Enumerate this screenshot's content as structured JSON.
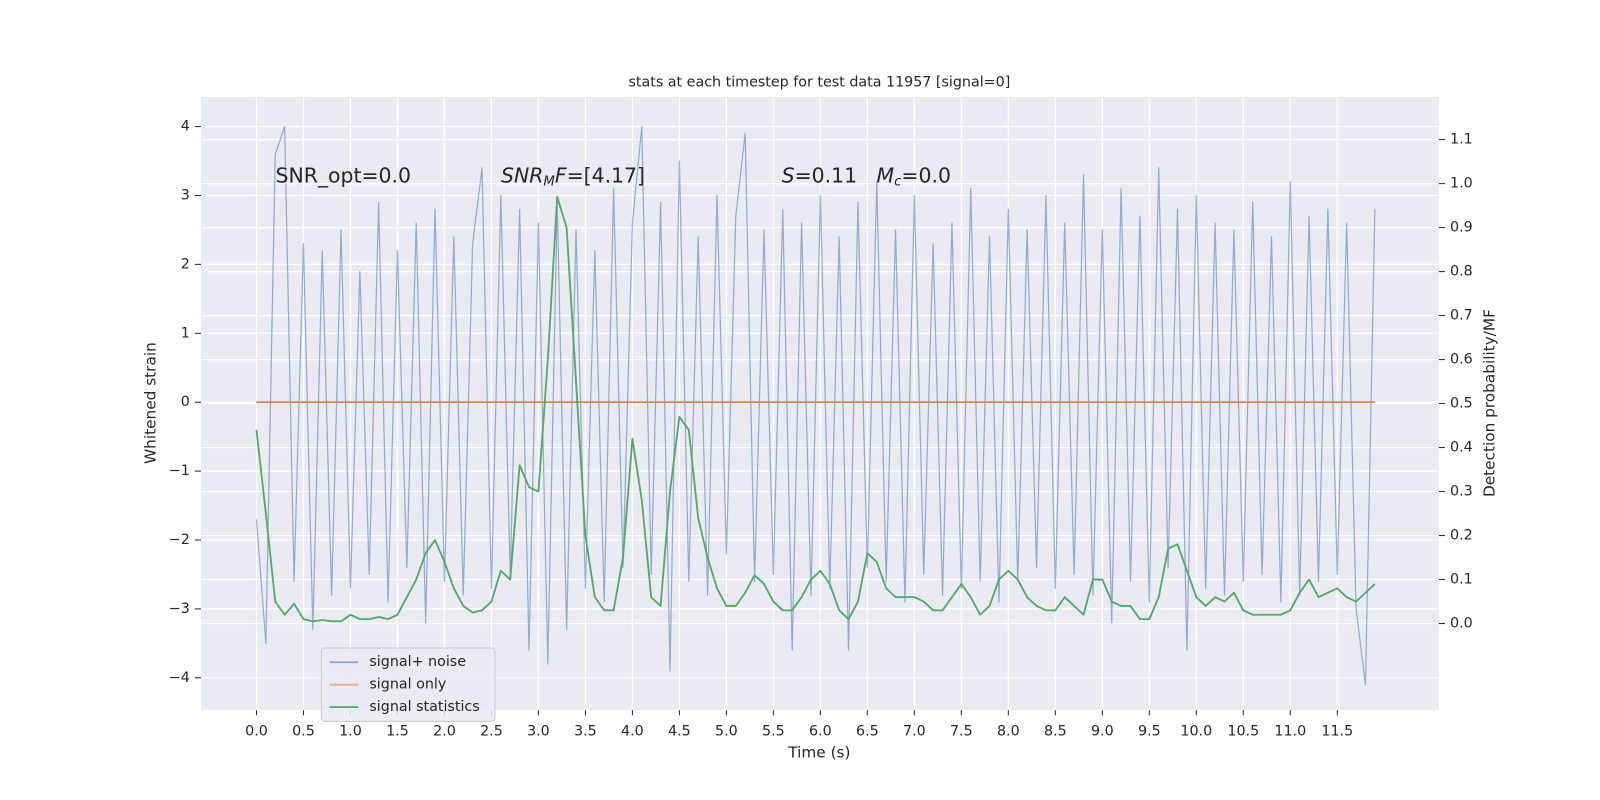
{
  "chart_data": {
    "type": "line",
    "title": "stats at each timestep for test data 11957 [signal=0]",
    "xlabel": "Time (s)",
    "ylabel": "Whitened strain",
    "y2label": "Detection probability/MF",
    "annotations": [
      [
        "SNR_opt=0.0"
      ],
      [
        "SNR",
        "M",
        "F",
        "=[4.17]"
      ],
      [
        "S",
        "=0.11"
      ],
      [
        "M",
        "c",
        "=0.0"
      ]
    ],
    "grid": true,
    "legend": "lower left",
    "x": [
      0,
      0.1,
      0.2,
      0.3,
      0.4,
      0.5,
      0.6,
      0.7,
      0.8,
      0.9,
      1,
      1.1,
      1.2,
      1.3,
      1.4,
      1.5,
      1.6,
      1.7,
      1.8,
      1.9,
      2,
      2.1,
      2.2,
      2.3,
      2.4,
      2.5,
      2.6,
      2.7,
      2.8,
      2.9,
      3,
      3.1,
      3.2,
      3.3,
      3.4,
      3.5,
      3.6,
      3.7,
      3.8,
      3.9,
      4,
      4.1,
      4.2,
      4.3,
      4.4,
      4.5,
      4.6,
      4.7,
      4.8,
      4.9,
      5,
      5.1,
      5.2,
      5.3,
      5.4,
      5.5,
      5.6,
      5.7,
      5.8,
      5.9,
      6,
      6.1,
      6.2,
      6.3,
      6.4,
      6.5,
      6.6,
      6.7,
      6.8,
      6.9,
      7,
      7.1,
      7.2,
      7.3,
      7.4,
      7.5,
      7.6,
      7.7,
      7.8,
      7.9,
      8,
      8.1,
      8.2,
      8.3,
      8.4,
      8.5,
      8.6,
      8.7,
      8.8,
      8.9,
      9,
      9.1,
      9.2,
      9.3,
      9.4,
      9.5,
      9.6,
      9.7,
      9.8,
      9.9,
      10,
      10.1,
      10.2,
      10.3,
      10.4,
      10.5,
      10.6,
      10.7,
      10.8,
      10.9,
      11,
      11.1,
      11.2,
      11.3,
      11.4,
      11.5,
      11.6,
      11.7,
      11.8,
      11.9
    ],
    "series": [
      {
        "name": "signal+ noise",
        "color": "#4c72b0",
        "values": [
          -1.7,
          -3.5,
          3.6,
          4.0,
          -2.6,
          2.3,
          -3.3,
          2.2,
          -2.8,
          2.5,
          -2.7,
          1.9,
          -2.5,
          2.9,
          -2.9,
          2.2,
          -2.4,
          2.6,
          -3.2,
          2.8,
          -2.6,
          2.4,
          -2.8,
          2.3,
          3.4,
          -2.7,
          3.0,
          -2.5,
          2.8,
          -3.6,
          2.6,
          -3.8,
          2.9,
          -3.3,
          2.5,
          -2.7,
          2.2,
          -2.9,
          3.1,
          -2.4,
          2.6,
          4.0,
          -2.5,
          2.9,
          -3.9,
          3.5,
          -2.6,
          2.4,
          -2.8,
          3.0,
          -2.2,
          2.7,
          3.9,
          -2.6,
          2.5,
          -2.5,
          2.8,
          -3.6,
          2.6,
          -2.8,
          3.0,
          -2.7,
          2.4,
          -3.6,
          2.9,
          -2.4,
          3.2,
          -2.6,
          2.5,
          -2.9,
          3.0,
          -2.5,
          2.3,
          -2.8,
          2.6,
          -2.7,
          3.1,
          -2.6,
          2.4,
          -2.9,
          2.8,
          -2.6,
          2.5,
          -2.4,
          3.0,
          -2.7,
          2.6,
          -2.5,
          3.3,
          -2.8,
          2.5,
          -3.2,
          3.1,
          -2.6,
          2.7,
          -2.9,
          3.4,
          -2.4,
          2.8,
          -3.6,
          3.0,
          -2.7,
          2.6,
          -2.8,
          2.5,
          -2.6,
          2.9,
          -2.5,
          2.4,
          -2.9,
          3.2,
          -2.8,
          2.7,
          -2.6,
          2.8,
          -2.5,
          2.6,
          -3.0,
          -4.1,
          2.8
        ]
      },
      {
        "name": "signal only",
        "color": "#dd8452",
        "values": [
          0,
          0,
          0,
          0,
          0,
          0,
          0,
          0,
          0,
          0,
          0,
          0,
          0,
          0,
          0,
          0,
          0,
          0,
          0,
          0,
          0,
          0,
          0,
          0,
          0,
          0,
          0,
          0,
          0,
          0,
          0,
          0,
          0,
          0,
          0,
          0,
          0,
          0,
          0,
          0,
          0,
          0,
          0,
          0,
          0,
          0,
          0,
          0,
          0,
          0,
          0,
          0,
          0,
          0,
          0,
          0,
          0,
          0,
          0,
          0,
          0,
          0,
          0,
          0,
          0,
          0,
          0,
          0,
          0,
          0,
          0,
          0,
          0,
          0,
          0,
          0,
          0,
          0,
          0,
          0,
          0,
          0,
          0,
          0,
          0,
          0,
          0,
          0,
          0,
          0,
          0,
          0,
          0,
          0,
          0,
          0,
          0,
          0,
          0,
          0,
          0,
          0,
          0,
          0,
          0,
          0,
          0,
          0,
          0,
          0,
          0,
          0,
          0,
          0,
          0,
          0,
          0,
          0,
          0,
          0
        ]
      },
      {
        "name": "signal statistics",
        "color": "#55a868",
        "axis": "y2",
        "values": [
          0.44,
          0.25,
          0.05,
          0.02,
          0.045,
          0.01,
          0.005,
          0.008,
          0.005,
          0.005,
          0.02,
          0.01,
          0.01,
          0.015,
          0.01,
          0.02,
          0.06,
          0.1,
          0.16,
          0.19,
          0.14,
          0.08,
          0.04,
          0.025,
          0.03,
          0.05,
          0.12,
          0.1,
          0.36,
          0.31,
          0.3,
          0.6,
          0.97,
          0.9,
          0.55,
          0.2,
          0.06,
          0.03,
          0.03,
          0.15,
          0.42,
          0.28,
          0.06,
          0.04,
          0.3,
          0.47,
          0.44,
          0.24,
          0.15,
          0.08,
          0.04,
          0.04,
          0.07,
          0.11,
          0.09,
          0.05,
          0.03,
          0.03,
          0.06,
          0.1,
          0.12,
          0.09,
          0.03,
          0.01,
          0.05,
          0.16,
          0.14,
          0.08,
          0.06,
          0.06,
          0.06,
          0.05,
          0.03,
          0.03,
          0.06,
          0.09,
          0.06,
          0.02,
          0.04,
          0.1,
          0.12,
          0.1,
          0.06,
          0.04,
          0.03,
          0.03,
          0.06,
          0.04,
          0.02,
          0.1,
          0.1,
          0.05,
          0.04,
          0.04,
          0.01,
          0.01,
          0.06,
          0.17,
          0.18,
          0.12,
          0.06,
          0.04,
          0.06,
          0.05,
          0.07,
          0.03,
          0.02,
          0.02,
          0.02,
          0.02,
          0.03,
          0.07,
          0.1,
          0.06,
          0.07,
          0.08,
          0.06,
          0.05,
          0.07,
          0.09
        ]
      }
    ],
    "xlim": [
      -0.59,
      12.58
    ],
    "xticks": [
      {
        "value": 0,
        "label": "0.0"
      },
      0.5,
      {
        "value": 1,
        "label": "1.0"
      },
      1.5,
      {
        "value": 2,
        "label": "2.0"
      },
      2.5,
      {
        "value": 3,
        "label": "3.0"
      },
      3.5,
      {
        "value": 4,
        "label": "4.0"
      },
      4.5,
      {
        "value": 5,
        "label": "5.0"
      },
      5.5,
      {
        "value": 6,
        "label": "6.0"
      },
      6.5,
      {
        "value": 7,
        "label": "7.0"
      },
      7.5,
      {
        "value": 8,
        "label": "8.0"
      },
      8.5,
      {
        "value": 9,
        "label": "9.0"
      },
      9.5,
      {
        "value": 10,
        "label": "10.0"
      },
      10.5,
      {
        "value": 11,
        "label": "11.0"
      },
      11.5
    ],
    "ylim": [
      -4.47,
      4.43
    ],
    "yticks": [
      {
        "value": -4,
        "label": "−4"
      },
      {
        "value": -3,
        "label": "−3"
      },
      {
        "value": -2,
        "label": "−2"
      },
      {
        "value": -1,
        "label": "−1"
      },
      0,
      1,
      2,
      3,
      4
    ],
    "y2lim": [
      -0.197,
      1.197
    ],
    "y2ticks": [
      {
        "value": 0,
        "label": "0.0"
      },
      0.1,
      0.2,
      0.3,
      0.4,
      0.5,
      0.6,
      0.7,
      0.8,
      0.9,
      {
        "value": 1,
        "label": "1.0"
      },
      1.1
    ]
  }
}
